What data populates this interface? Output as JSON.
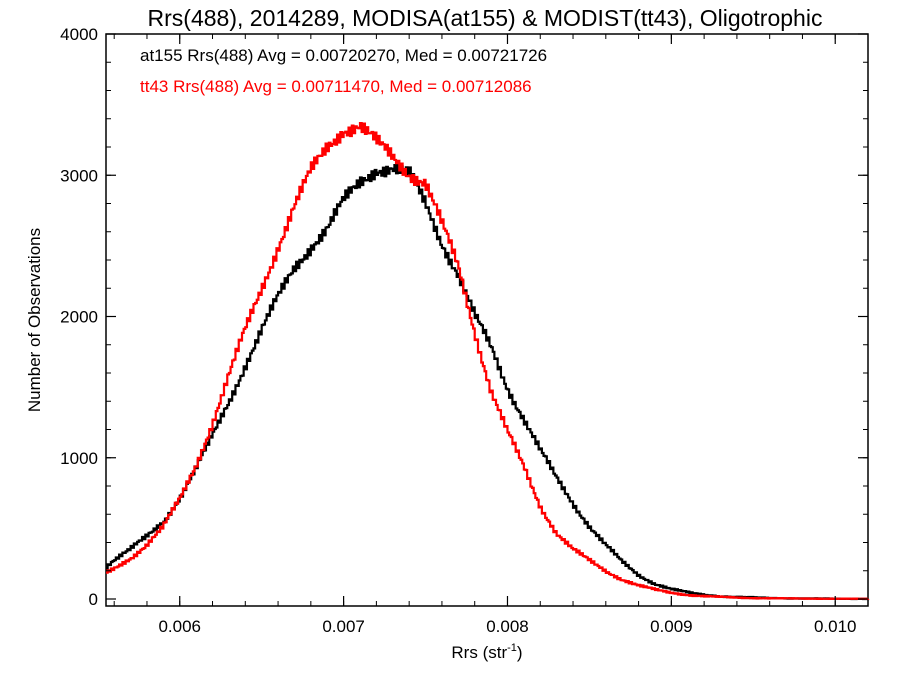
{
  "chart_data": {
    "type": "line",
    "title": "Rrs(488), 2014289, MODISA(at155) & MODIST(tt43), Oligotrophic",
    "xlabel": "Rrs (str",
    "xlabel_superscript": "-1",
    "xlabel_suffix": ")",
    "ylabel": "Number of Observations",
    "xlim": [
      0.00555,
      0.0102
    ],
    "ylim": [
      0,
      4000
    ],
    "x_ticks": [
      {
        "value": 0.006,
        "label": "0.006"
      },
      {
        "value": 0.007,
        "label": "0.007"
      },
      {
        "value": 0.008,
        "label": "0.008"
      },
      {
        "value": 0.009,
        "label": "0.009"
      },
      {
        "value": 0.01,
        "label": "0.010"
      }
    ],
    "y_ticks": [
      {
        "value": 0,
        "label": "0"
      },
      {
        "value": 1000,
        "label": "1000"
      },
      {
        "value": 2000,
        "label": "2000"
      },
      {
        "value": 3000,
        "label": "3000"
      },
      {
        "value": 4000,
        "label": "4000"
      }
    ],
    "grid": false,
    "legend_placement": "top-left",
    "series": [
      {
        "name": "at155",
        "color": "#000000",
        "annotation": "at155 Rrs(488) Avg = 0.00720270, Med = 0.00721726",
        "points": [
          [
            0.00555,
            230
          ],
          [
            0.0056,
            280
          ],
          [
            0.0057,
            350
          ],
          [
            0.0058,
            440
          ],
          [
            0.0059,
            550
          ],
          [
            0.006,
            720
          ],
          [
            0.0061,
            920
          ],
          [
            0.0062,
            1150
          ],
          [
            0.0063,
            1400
          ],
          [
            0.0064,
            1660
          ],
          [
            0.0065,
            1900
          ],
          [
            0.0066,
            2130
          ],
          [
            0.0067,
            2350
          ],
          [
            0.0068,
            2500
          ],
          [
            0.0069,
            2620
          ],
          [
            0.007,
            2810
          ],
          [
            0.0071,
            2950
          ],
          [
            0.0072,
            3050
          ],
          [
            0.0073,
            3050
          ],
          [
            0.0074,
            3000
          ],
          [
            0.0075,
            2800
          ],
          [
            0.0076,
            2530
          ],
          [
            0.0077,
            2300
          ],
          [
            0.0078,
            2000
          ],
          [
            0.0079,
            1780
          ],
          [
            0.008,
            1500
          ],
          [
            0.0081,
            1280
          ],
          [
            0.0082,
            1050
          ],
          [
            0.0083,
            850
          ],
          [
            0.0084,
            680
          ],
          [
            0.0085,
            520
          ],
          [
            0.0086,
            380
          ],
          [
            0.0087,
            260
          ],
          [
            0.0088,
            170
          ],
          [
            0.0089,
            110
          ],
          [
            0.009,
            70
          ],
          [
            0.0091,
            45
          ],
          [
            0.0092,
            30
          ],
          [
            0.0093,
            20
          ],
          [
            0.0094,
            14
          ],
          [
            0.0095,
            10
          ],
          [
            0.0096,
            7
          ],
          [
            0.0098,
            4
          ],
          [
            0.01,
            2
          ],
          [
            0.0102,
            1
          ]
        ]
      },
      {
        "name": "tt43",
        "color": "#ff0000",
        "annotation": "tt43 Rrs(488) Avg = 0.00711470, Med = 0.00712086",
        "points": [
          [
            0.00555,
            180
          ],
          [
            0.0056,
            210
          ],
          [
            0.0057,
            290
          ],
          [
            0.0058,
            390
          ],
          [
            0.0059,
            510
          ],
          [
            0.006,
            700
          ],
          [
            0.0061,
            950
          ],
          [
            0.0062,
            1250
          ],
          [
            0.0063,
            1580
          ],
          [
            0.0064,
            1900
          ],
          [
            0.0065,
            2200
          ],
          [
            0.0066,
            2500
          ],
          [
            0.0067,
            2780
          ],
          [
            0.0068,
            3020
          ],
          [
            0.0069,
            3200
          ],
          [
            0.007,
            3330
          ],
          [
            0.0071,
            3350
          ],
          [
            0.0072,
            3230
          ],
          [
            0.0073,
            3130
          ],
          [
            0.0074,
            3020
          ],
          [
            0.0075,
            2950
          ],
          [
            0.0076,
            2650
          ],
          [
            0.0077,
            2350
          ],
          [
            0.0078,
            1900
          ],
          [
            0.0079,
            1480
          ],
          [
            0.008,
            1180
          ],
          [
            0.0081,
            930
          ],
          [
            0.0082,
            660
          ],
          [
            0.0083,
            470
          ],
          [
            0.0084,
            350
          ],
          [
            0.0085,
            270
          ],
          [
            0.0086,
            200
          ],
          [
            0.0087,
            140
          ],
          [
            0.0088,
            95
          ],
          [
            0.0089,
            65
          ],
          [
            0.009,
            45
          ],
          [
            0.0091,
            30
          ],
          [
            0.0092,
            20
          ],
          [
            0.0093,
            14
          ],
          [
            0.0094,
            10
          ],
          [
            0.0095,
            7
          ],
          [
            0.0096,
            5
          ],
          [
            0.0098,
            3
          ],
          [
            0.01,
            2
          ],
          [
            0.0102,
            1
          ]
        ]
      }
    ]
  }
}
